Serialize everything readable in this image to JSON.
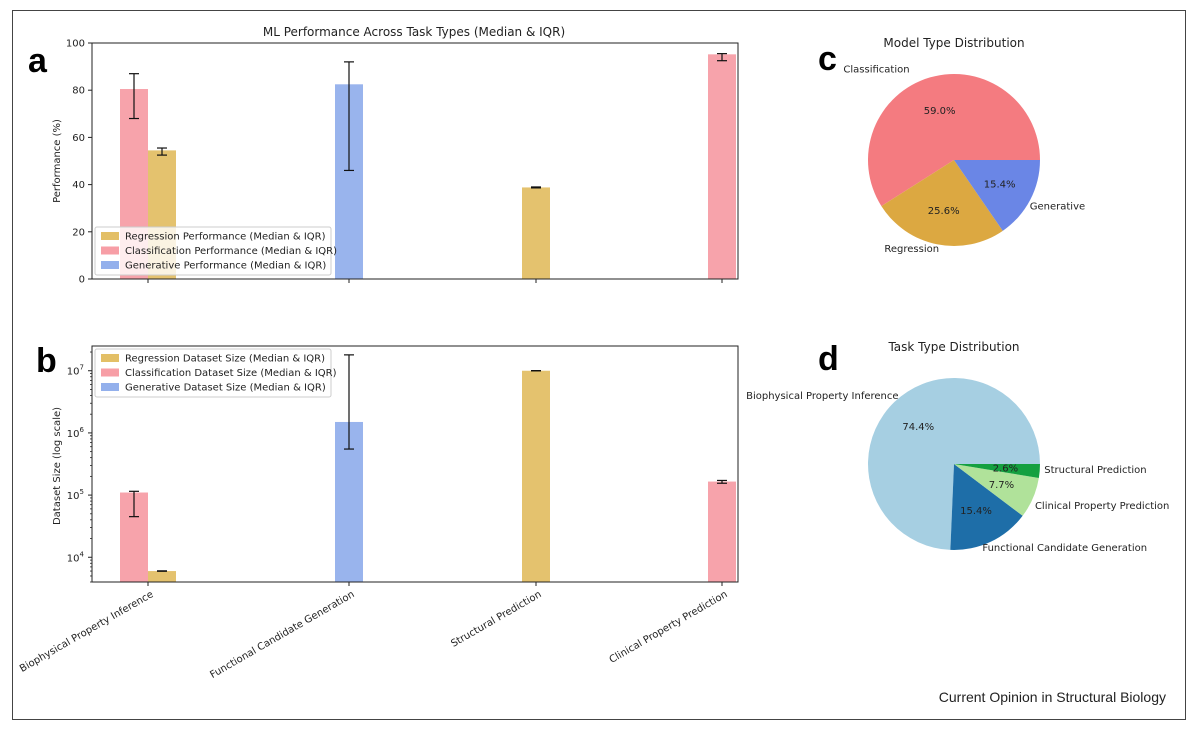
{
  "figure": {
    "panel_letters": [
      "a",
      "b",
      "c",
      "d"
    ],
    "footer": "Current Opinion in Structural Biology"
  },
  "colors": {
    "regression": "#e3bf66",
    "classification": "#f79ea6",
    "generative": "#93b0ec"
  },
  "chart_data": [
    {
      "type": "bar",
      "panel": "a",
      "title": "ML Performance Across Task Types (Median & IQR)",
      "ylabel": "Performance (%)",
      "xlabel": "",
      "ylim": [
        0,
        100
      ],
      "yticks": [
        0,
        20,
        40,
        60,
        80,
        100
      ],
      "categories": [
        "Biophysical Property Inference",
        "Functional Candidate Generation",
        "Structural Prediction",
        "Clinical Property Prediction"
      ],
      "series": [
        {
          "name": "Regression Performance (Median & IQR)",
          "key": "regression",
          "values": [
            {
              "category": 0,
              "median": 54.5,
              "q1": 52.5,
              "q3": 55.5
            },
            {
              "category": 2,
              "median": 38.8,
              "q1": 38.6,
              "q3": 39.0
            }
          ]
        },
        {
          "name": "Classification Performance (Median & IQR)",
          "key": "classification",
          "values": [
            {
              "category": 0,
              "median": 80.5,
              "q1": 68,
              "q3": 87
            },
            {
              "category": 3,
              "median": 95.2,
              "q1": 92.5,
              "q3": 95.5
            }
          ]
        },
        {
          "name": "Generative Performance (Median & IQR)",
          "key": "generative",
          "values": [
            {
              "category": 1,
              "median": 82.5,
              "q1": 46,
              "q3": 92
            }
          ]
        }
      ],
      "legend": "bottom-left"
    },
    {
      "type": "bar",
      "panel": "b",
      "title": "",
      "ylabel": "Dataset Size (log scale)",
      "yscale": "log",
      "ylim": [
        4000,
        25000000
      ],
      "yticks": [
        10000,
        100000,
        1000000,
        10000000
      ],
      "ytick_labels": [
        {
          "base": "10",
          "exp": "4"
        },
        {
          "base": "10",
          "exp": "5"
        },
        {
          "base": "10",
          "exp": "6"
        },
        {
          "base": "10",
          "exp": "7"
        }
      ],
      "categories": [
        "Biophysical Property Inference",
        "Functional Candidate Generation",
        "Structural Prediction",
        "Clinical Property Prediction"
      ],
      "series": [
        {
          "name": "Regression Dataset Size (Median & IQR)",
          "key": "regression",
          "values": [
            {
              "category": 0,
              "median": 6000,
              "q1": 5950,
              "q3": 6050
            },
            {
              "category": 2,
              "median": 10000000,
              "q1": 9950000,
              "q3": 10050000
            }
          ]
        },
        {
          "name": "Classification Dataset Size (Median & IQR)",
          "key": "classification",
          "values": [
            {
              "category": 0,
              "median": 110000,
              "q1": 45000,
              "q3": 115000
            },
            {
              "category": 3,
              "median": 165000,
              "q1": 155000,
              "q3": 172000
            }
          ]
        },
        {
          "name": "Generative Dataset Size (Median & IQR)",
          "key": "generative",
          "values": [
            {
              "category": 1,
              "median": 1500000,
              "q1": 550000,
              "q3": 18000000
            }
          ]
        }
      ],
      "legend": "top-left"
    },
    {
      "type": "pie",
      "panel": "c",
      "title": "Model Type Distribution",
      "slices": [
        {
          "label": "Classification",
          "value": 59.0,
          "pct": "59.0%",
          "color": "#f47b80"
        },
        {
          "label": "Regression",
          "value": 25.6,
          "pct": "25.6%",
          "color": "#dca841"
        },
        {
          "label": "Generative",
          "value": 15.4,
          "pct": "15.4%",
          "color": "#6a86e6"
        }
      ]
    },
    {
      "type": "pie",
      "panel": "d",
      "title": "Task Type Distribution",
      "slices": [
        {
          "label": "Biophysical Property Inference",
          "value": 74.4,
          "pct": "74.4%",
          "color": "#a6cfe2"
        },
        {
          "label": "Functional Candidate Generation",
          "value": 15.4,
          "pct": "15.4%",
          "color": "#1e6ea8"
        },
        {
          "label": "Clinical Property Prediction",
          "value": 7.7,
          "pct": "7.7%",
          "color": "#b0e29a"
        },
        {
          "label": "Structural Prediction",
          "value": 2.6,
          "pct": "2.6%",
          "color": "#14a040"
        }
      ]
    }
  ]
}
